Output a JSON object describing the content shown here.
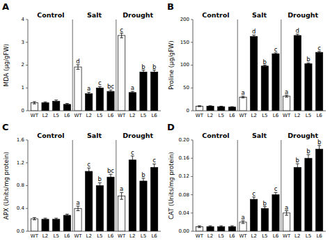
{
  "chart_data": [
    {
      "type": "bar",
      "title": "A",
      "ylabel": "MDA (µg/gFW)",
      "categories": [
        "WT",
        "L2",
        "L5",
        "L6",
        "WT",
        "L2",
        "L5",
        "L6",
        "WT",
        "L2",
        "L5",
        "L6"
      ],
      "values": [
        0.35,
        0.35,
        0.42,
        0.28,
        1.92,
        0.75,
        1.0,
        0.85,
        3.3,
        0.8,
        1.7,
        1.7
      ],
      "errors": [
        0.05,
        0.04,
        0.05,
        0.04,
        0.1,
        0.06,
        0.06,
        0.06,
        0.1,
        0.05,
        0.08,
        0.08
      ],
      "colors": [
        "white",
        "black",
        "black",
        "black",
        "white",
        "black",
        "black",
        "black",
        "white",
        "black",
        "black",
        "black"
      ],
      "annotations": [
        null,
        null,
        null,
        null,
        "d",
        "a",
        "c",
        "bc",
        "c",
        "a",
        "b",
        "b"
      ],
      "group_labels": [
        "Control",
        "Salt",
        "Drought"
      ],
      "ylim": [
        0,
        4
      ],
      "yticks": [
        0,
        1,
        2,
        3,
        4
      ],
      "grid": false
    },
    {
      "type": "bar",
      "title": "B",
      "ylabel": "Proline (µg/gFW)",
      "categories": [
        "WT",
        "L2",
        "L5",
        "L6",
        "WT",
        "L2",
        "L5",
        "L6",
        "WT",
        "L2",
        "L5",
        "L6"
      ],
      "values": [
        10,
        10,
        9,
        8,
        30,
        163,
        98,
        125,
        32,
        165,
        103,
        128
      ],
      "errors": [
        1,
        1,
        1,
        1,
        2,
        3,
        2,
        2,
        2,
        3,
        2,
        2
      ],
      "colors": [
        "white",
        "black",
        "black",
        "black",
        "white",
        "black",
        "black",
        "black",
        "white",
        "black",
        "black",
        "black"
      ],
      "annotations": [
        null,
        null,
        null,
        null,
        "a",
        "d",
        "b",
        "c",
        "a",
        "d",
        "b",
        "c"
      ],
      "group_labels": [
        "Control",
        "Salt",
        "Drought"
      ],
      "ylim": [
        0,
        200
      ],
      "yticks": [
        0,
        50,
        100,
        150,
        200
      ],
      "grid": false
    },
    {
      "type": "bar",
      "title": "C",
      "ylabel": "APX (Units/mg protein)",
      "categories": [
        "WT",
        "L2",
        "L5",
        "L6",
        "WT",
        "L2",
        "L5",
        "L6",
        "WT",
        "L2",
        "L5",
        "L6"
      ],
      "values": [
        0.22,
        0.21,
        0.21,
        0.28,
        0.4,
        1.05,
        0.8,
        0.95,
        0.62,
        1.25,
        0.88,
        1.12
      ],
      "errors": [
        0.02,
        0.02,
        0.02,
        0.02,
        0.04,
        0.06,
        0.05,
        0.05,
        0.06,
        0.07,
        0.05,
        0.06
      ],
      "colors": [
        "white",
        "black",
        "black",
        "black",
        "white",
        "black",
        "black",
        "black",
        "white",
        "black",
        "black",
        "black"
      ],
      "annotations": [
        null,
        null,
        null,
        null,
        "a",
        "c",
        "b",
        "bc",
        "a",
        "c",
        "b",
        "c"
      ],
      "group_labels": [
        "Control",
        "Salt",
        "Drought"
      ],
      "ylim": [
        0,
        1.6
      ],
      "yticks": [
        {
          "value": 0,
          "label": "0.0"
        },
        0.4,
        0.8,
        1.2,
        1.6
      ],
      "grid": false
    },
    {
      "type": "bar",
      "title": "D",
      "ylabel": "CAT (Units/mg protein)",
      "categories": [
        "WT",
        "L2",
        "L5",
        "L6",
        "WT",
        "L2",
        "L5",
        "L6",
        "WT",
        "L2",
        "L5",
        "L6"
      ],
      "values": [
        0.01,
        0.01,
        0.01,
        0.01,
        0.02,
        0.07,
        0.05,
        0.08,
        0.04,
        0.14,
        0.16,
        0.18
      ],
      "errors": [
        0.002,
        0.002,
        0.002,
        0.002,
        0.003,
        0.005,
        0.004,
        0.005,
        0.005,
        0.008,
        0.008,
        0.008
      ],
      "colors": [
        "white",
        "black",
        "black",
        "black",
        "white",
        "black",
        "black",
        "black",
        "white",
        "black",
        "black",
        "black"
      ],
      "annotations": [
        null,
        null,
        null,
        null,
        "a",
        "c",
        "b",
        "c",
        "a",
        "b",
        "b",
        "b"
      ],
      "group_labels": [
        "Control",
        "Salt",
        "Drought"
      ],
      "ylim": [
        0,
        0.2
      ],
      "yticks": [
        {
          "value": 0,
          "label": "0.00"
        },
        0.04,
        0.08,
        0.12,
        0.16,
        {
          "value": 0.2,
          "label": "0.20"
        }
      ],
      "grid": false
    }
  ]
}
